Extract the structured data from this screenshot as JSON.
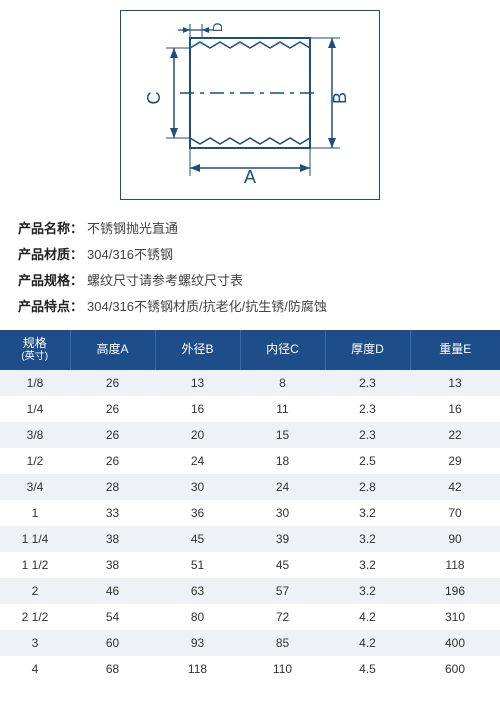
{
  "diagram": {
    "labels": {
      "A": "A",
      "B": "B",
      "C": "C",
      "D": "D"
    },
    "stroke": "#1c4e80",
    "fill": "#ffffff"
  },
  "info": [
    {
      "label": "产品名称：",
      "value": "不锈钢抛光直通"
    },
    {
      "label": "产品材质：",
      "value": "304/316不锈钢"
    },
    {
      "label": "产品规格：",
      "value": "螺纹尺寸请参考螺纹尺寸表"
    },
    {
      "label": "产品特点：",
      "value": "304/316不锈钢材质/抗老化/抗生锈/防腐蚀"
    }
  ],
  "table": {
    "header_bg": "#1d4e89",
    "row_odd_bg": "#eef2f6",
    "row_even_bg": "#ffffff",
    "columns": [
      {
        "title": "规格",
        "sub": "(英寸)"
      },
      {
        "title": "高度A",
        "sub": ""
      },
      {
        "title": "外径B",
        "sub": ""
      },
      {
        "title": "内径C",
        "sub": ""
      },
      {
        "title": "厚度D",
        "sub": ""
      },
      {
        "title": "重量E",
        "sub": ""
      }
    ],
    "rows": [
      [
        "1/8",
        "26",
        "13",
        "8",
        "2.3",
        "13"
      ],
      [
        "1/4",
        "26",
        "16",
        "11",
        "2.3",
        "16"
      ],
      [
        "3/8",
        "26",
        "20",
        "15",
        "2.3",
        "22"
      ],
      [
        "1/2",
        "26",
        "24",
        "18",
        "2.5",
        "29"
      ],
      [
        "3/4",
        "28",
        "30",
        "24",
        "2.8",
        "42"
      ],
      [
        "1",
        "33",
        "36",
        "30",
        "3.2",
        "70"
      ],
      [
        "1 1/4",
        "38",
        "45",
        "39",
        "3.2",
        "90"
      ],
      [
        "1 1/2",
        "38",
        "51",
        "45",
        "3.2",
        "118"
      ],
      [
        "2",
        "46",
        "63",
        "57",
        "3.2",
        "196"
      ],
      [
        "2 1/2",
        "54",
        "80",
        "72",
        "4.2",
        "310"
      ],
      [
        "3",
        "60",
        "93",
        "85",
        "4.2",
        "400"
      ],
      [
        "4",
        "68",
        "118",
        "110",
        "4.5",
        "600"
      ]
    ]
  }
}
